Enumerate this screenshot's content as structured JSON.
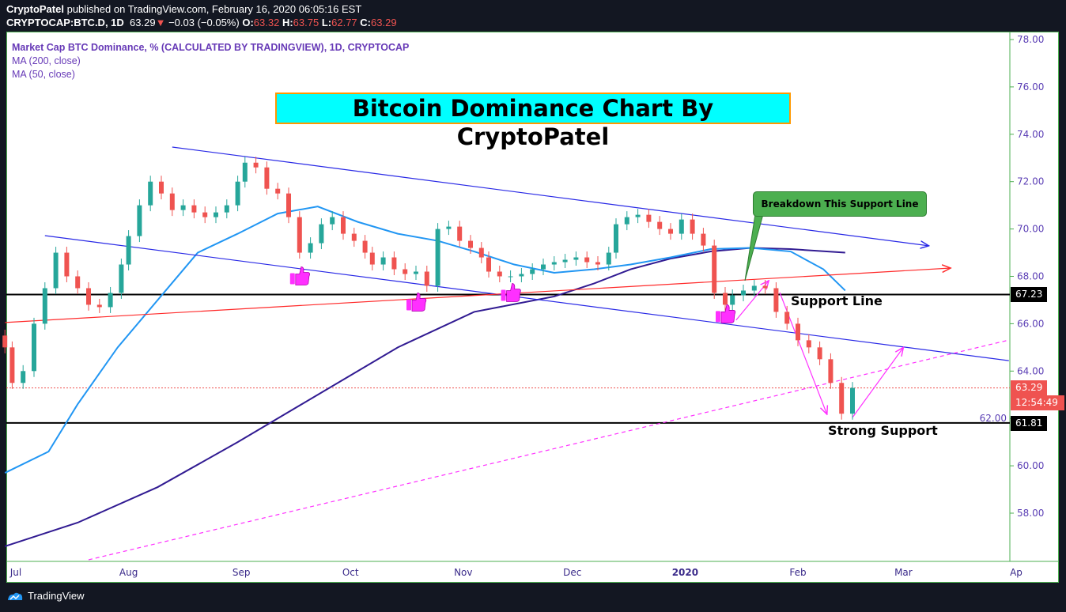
{
  "header": {
    "author": "CryptoPatel",
    "published": "published on TradingView.com, February 16, 2020 06:05:16 EST",
    "symbol": "CRYPTOCAP:BTC.D, 1D",
    "last": "63.29",
    "change": "−0.03 (−0.05%)",
    "o_label": "O:",
    "o": "63.32",
    "h_label": "H:",
    "h": "63.75",
    "l_label": "L:",
    "l": "62.77",
    "c_label": "C:",
    "c": "63.29"
  },
  "legend": {
    "series": "Market Cap BTC Dominance, % (CALCULATED BY TRADINGVIEW), 1D, CRYPTOCAP",
    "ma200": "MA (200, close)",
    "ma50": "MA (50, close)"
  },
  "annotations": {
    "title": "Bitcoin Dominance Chart By CryptoPatel",
    "callout": "Breakdown This Support Line",
    "support": "Support Line",
    "strong_support": "Strong Support"
  },
  "price_tags": {
    "support": "67.23",
    "last": "63.29",
    "countdown": "12:54:49",
    "strong_support": "61.81"
  },
  "footer": {
    "brand": "TradingView"
  },
  "colors": {
    "up": "#26a69a",
    "down": "#ef5350",
    "ma50": "#2196f3",
    "ma200": "#311b92",
    "channel": "#2929e6",
    "trend": "#ff2a2a",
    "magenta": "#ff30ff",
    "axis_text": "#5b3fb5"
  },
  "chart_data": {
    "type": "candlestick",
    "start": "2019-06-28",
    "end": "2020-02-16",
    "closes": [
      65,
      63.5,
      64,
      66,
      67.5,
      69,
      68,
      67.5,
      66.8,
      66.7,
      67.3,
      68.5,
      69.7,
      71,
      72,
      71.5,
      70.8,
      71,
      70.7,
      70.5,
      70.7,
      71,
      72,
      72.8,
      72.6,
      71.7,
      71.5,
      70.5,
      69,
      69.4,
      70.2,
      70.5,
      69.8,
      69.5,
      69,
      68.5,
      68.8,
      68.3,
      68.1,
      68.2,
      67.6,
      70,
      70.1,
      69.5,
      69.2,
      68.8,
      68.2,
      68,
      68,
      68.1,
      68.3,
      68.5,
      68.6,
      68.7,
      68.8,
      68.6,
      68.5,
      69,
      70.2,
      70.5,
      70.6,
      70.3,
      70,
      69.8,
      70.4,
      69.8,
      69.3,
      67.3,
      66.8,
      67.2,
      67.4,
      67.6,
      67.5,
      66.5,
      66,
      65.3,
      65,
      64.5,
      63.5,
      62.2,
      63.29
    ],
    "ma50": [
      [
        "2019-06-28",
        59.7
      ],
      [
        "2019-07-10",
        60.6
      ],
      [
        "2019-07-18",
        62.6
      ],
      [
        "2019-07-29",
        65.0
      ],
      [
        "2019-08-09",
        67.0
      ],
      [
        "2019-08-20",
        69.0
      ],
      [
        "2019-08-31",
        69.8
      ],
      [
        "2019-09-11",
        70.65
      ],
      [
        "2019-09-22",
        70.95
      ],
      [
        "2019-10-03",
        70.3
      ],
      [
        "2019-10-14",
        69.8
      ],
      [
        "2019-10-25",
        69.5
      ],
      [
        "2019-11-04",
        69.05
      ],
      [
        "2019-11-15",
        68.5
      ],
      [
        "2019-11-26",
        68.15
      ],
      [
        "2019-12-07",
        68.3
      ],
      [
        "2019-12-17",
        68.5
      ],
      [
        "2019-12-28",
        68.8
      ],
      [
        "2020-01-08",
        69.15
      ],
      [
        "2020-01-19",
        69.2
      ],
      [
        "2020-01-30",
        69.05
      ],
      [
        "2020-02-08",
        68.3
      ],
      [
        "2020-02-14",
        67.4
      ]
    ],
    "ma200": [
      [
        "2019-06-28",
        56.6
      ],
      [
        "2019-07-18",
        57.6
      ],
      [
        "2019-08-09",
        59.1
      ],
      [
        "2019-08-31",
        61.0
      ],
      [
        "2019-09-22",
        63.0
      ],
      [
        "2019-10-14",
        65.0
      ],
      [
        "2019-11-04",
        66.5
      ],
      [
        "2019-11-26",
        67.15
      ],
      [
        "2019-12-07",
        67.7
      ],
      [
        "2019-12-17",
        68.3
      ],
      [
        "2019-12-28",
        68.75
      ],
      [
        "2020-01-08",
        69.05
      ],
      [
        "2020-01-19",
        69.2
      ],
      [
        "2020-01-30",
        69.15
      ],
      [
        "2020-02-14",
        69.0
      ]
    ],
    "drawings": [
      {
        "kind": "line",
        "color": "channel",
        "from": [
          "2019-08-13",
          73.46
        ],
        "to": [
          "2020-03-08",
          69.29
        ],
        "arrow": true
      },
      {
        "kind": "line",
        "color": "channel",
        "from": [
          "2019-07-09",
          69.72
        ],
        "to": [
          "2020-03-30",
          64.44
        ]
      },
      {
        "kind": "line",
        "color": "trend",
        "from": [
          "2019-06-28",
          66.05
        ],
        "to": [
          "2020-03-14",
          68.35
        ],
        "arrow": true
      },
      {
        "kind": "dashed",
        "color": "magenta",
        "from": [
          "2019-07-21",
          56.03
        ],
        "to": [
          "2020-03-30",
          65.31
        ]
      },
      {
        "kind": "line",
        "color": "magenta",
        "from": [
          "2020-01-27",
          67.32
        ],
        "to": [
          "2020-02-09",
          62.17
        ],
        "arrow": true
      },
      {
        "kind": "line",
        "color": "magenta",
        "from": [
          "2020-02-16",
          62.04
        ],
        "to": [
          "2020-03-01",
          65.0
        ],
        "arrow": true
      },
      {
        "kind": "line",
        "color": "magenta",
        "from": [
          "2020-01-15",
          66.15
        ],
        "to": [
          "2020-01-24",
          67.82
        ],
        "arrow": true
      }
    ],
    "hlines": [
      67.23,
      61.81
    ],
    "last_price_line": 63.29,
    "thumbs_up": [
      [
        "2019-09-17",
        68.0
      ],
      [
        "2019-10-19",
        66.9
      ],
      [
        "2019-11-14",
        67.3
      ],
      [
        "2020-01-12",
        66.4
      ]
    ],
    "y_ticks": [
      "78.00",
      "76.00",
      "74.00",
      "72.00",
      "70.00",
      "68.00",
      "66.00",
      "64.00",
      "62.00",
      "60.00",
      "58.00"
    ],
    "x_ticks": [
      [
        "2019-07-01",
        "Jul"
      ],
      [
        "2019-08-01",
        "Aug"
      ],
      [
        "2019-09-01",
        "Sep"
      ],
      [
        "2019-10-01",
        "Oct"
      ],
      [
        "2019-11-01",
        "Nov"
      ],
      [
        "2019-12-01",
        "Dec"
      ],
      [
        "2020-01-01",
        "2020"
      ],
      [
        "2020-02-01",
        "Feb"
      ],
      [
        "2020-03-01",
        "Mar"
      ],
      [
        "2020-04-01",
        "Ap"
      ]
    ],
    "ylim": [
      56,
      78.3
    ]
  }
}
